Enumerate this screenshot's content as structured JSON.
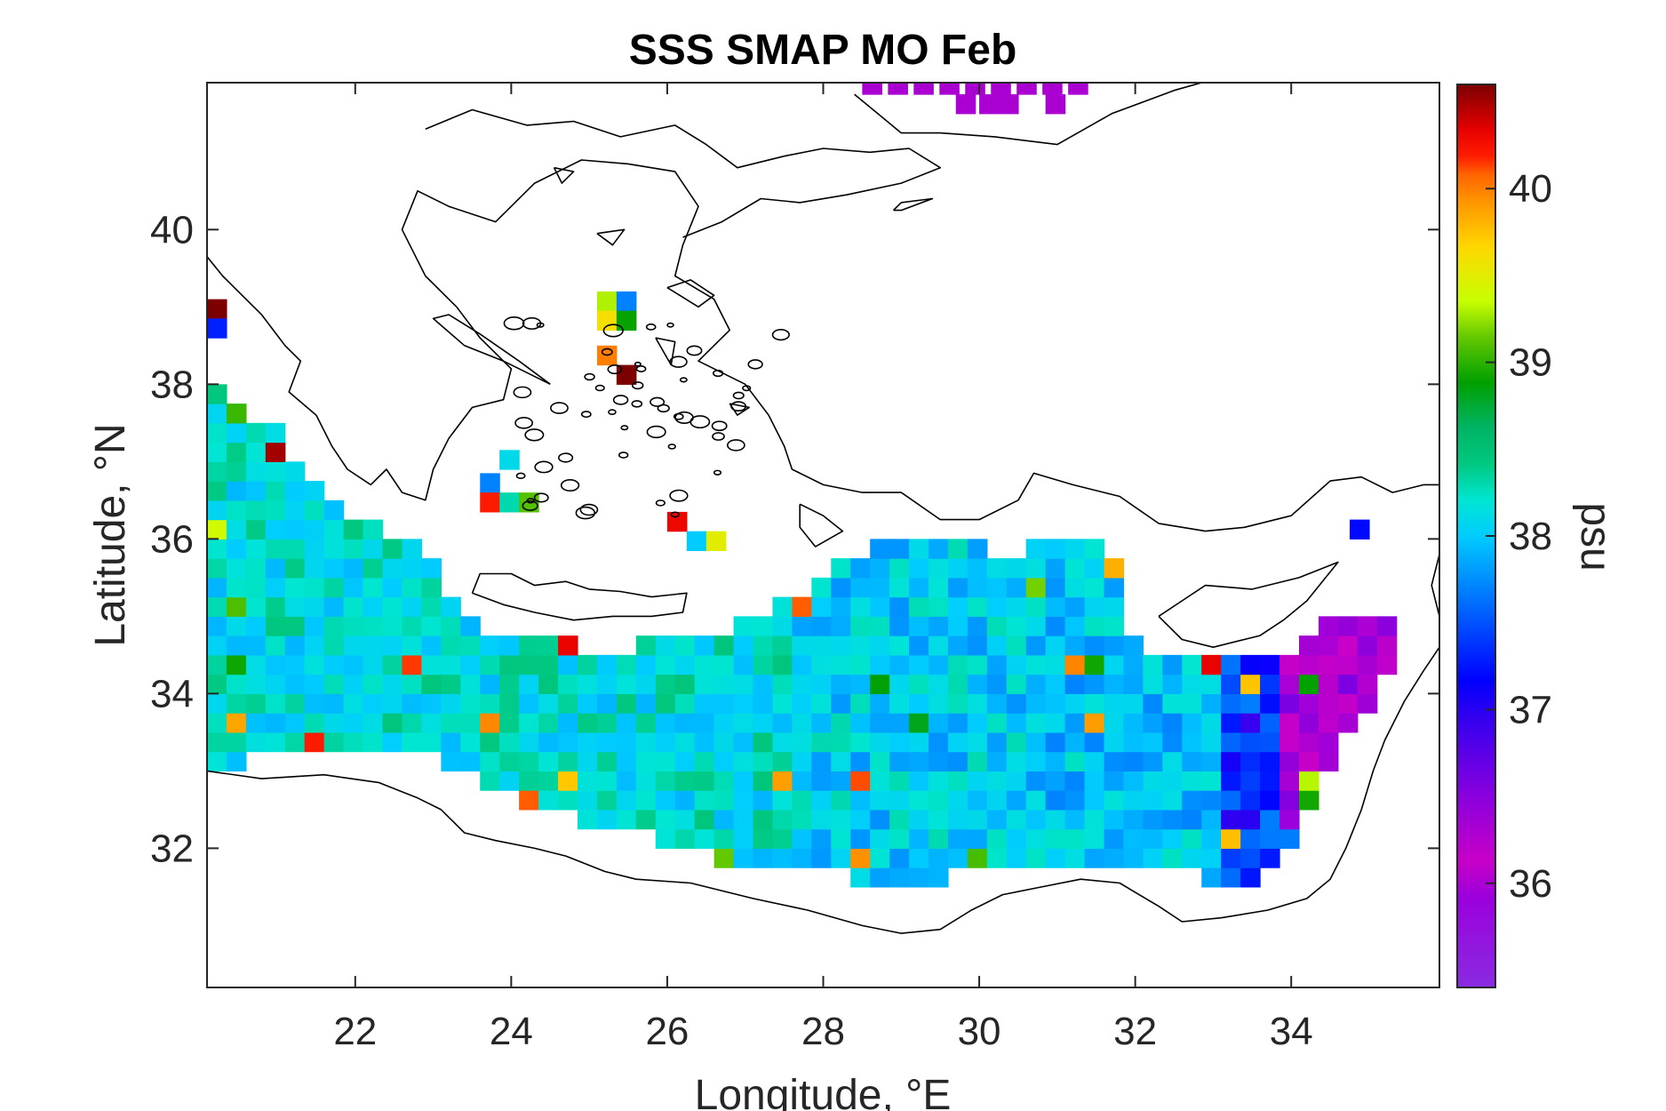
{
  "chart_data": {
    "type": "heatmap",
    "title": "SSS SMAP MO Feb",
    "xlabel": "Longitude, °E",
    "ylabel": "Latitude, °N",
    "colorbar_label": "psu",
    "xlim": [
      20.1,
      35.9
    ],
    "ylim": [
      30.2,
      41.9
    ],
    "xticks": [
      22,
      24,
      26,
      28,
      30,
      32,
      34
    ],
    "yticks": [
      32,
      34,
      36,
      38,
      40
    ],
    "colorbar_ticks": [
      36,
      37,
      38,
      39,
      40
    ],
    "clim": [
      35.4,
      40.6
    ],
    "colormap": "jet-like (violet–blue–cyan–green–yellow–red–darkred)",
    "grid": false,
    "cell_size_deg": 0.25,
    "field": {
      "lon_range": [
        20.1,
        35.6
      ],
      "lat_range": [
        30.9,
        41.9
      ],
      "description": "gridded sea surface salinity values, mostly 37.6–38.4 psu over the open sea, decreasing to 35.8–36.6 psu near the Levantine coast (lon 34–35.4), with sparse 39.5–40.6 psu values near coasts"
    }
  }
}
